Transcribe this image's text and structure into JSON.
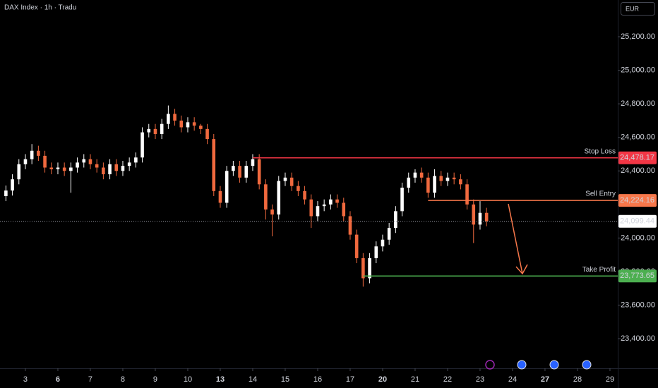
{
  "chart_data": {
    "type": "candlestick",
    "title": "DAX Index · 1h · Tradu",
    "currency": "EUR",
    "up_color": "#ffffff",
    "down_color": "#f0693e",
    "x": [
      -3,
      -2,
      -1,
      0,
      1,
      2,
      3,
      4,
      5,
      6,
      7,
      8,
      9,
      10,
      11,
      12,
      13,
      14,
      15,
      16,
      17,
      18,
      19,
      20,
      21,
      22,
      23,
      24,
      25,
      26,
      27,
      28,
      29,
      30,
      31,
      32,
      33,
      34,
      35,
      36,
      37,
      38,
      39,
      40,
      41,
      42,
      43,
      44,
      45,
      46,
      47,
      48,
      49,
      50,
      51,
      52,
      53,
      54,
      55,
      56,
      57,
      58,
      59,
      60,
      61,
      62,
      63,
      64,
      65,
      66,
      67,
      68,
      69,
      70,
      71
    ],
    "open": [
      24250,
      24283,
      24350,
      24440,
      24470,
      24520,
      24490,
      24420,
      24410,
      24420,
      24400,
      24420,
      24450,
      24470,
      24440,
      24420,
      24380,
      24440,
      24400,
      24430,
      24450,
      24480,
      24630,
      24650,
      24620,
      24680,
      24740,
      24700,
      24660,
      24690,
      24670,
      24650,
      24590,
      24280,
      24210,
      24400,
      24430,
      24360,
      24430,
      24470,
      24320,
      24170,
      24140,
      24340,
      24360,
      24310,
      24280,
      24230,
      24130,
      24190,
      24200,
      24230,
      24210,
      24130,
      24020,
      23880,
      23760,
      23880,
      23950,
      23990,
      24060,
      24160,
      24300,
      24360,
      24390,
      24360,
      24270,
      24370,
      24340,
      24360,
      24350,
      24320,
      24200,
      24080,
      24150
    ],
    "high": [
      24313,
      24380,
      24470,
      24500,
      24560,
      24550,
      24520,
      24450,
      24450,
      24450,
      24450,
      24480,
      24500,
      24500,
      24470,
      24450,
      24470,
      24470,
      24460,
      24480,
      24510,
      24660,
      24680,
      24680,
      24710,
      24790,
      24770,
      24730,
      24720,
      24720,
      24680,
      24680,
      24620,
      24310,
      24430,
      24460,
      24460,
      24460,
      24500,
      24500,
      24350,
      24200,
      24370,
      24390,
      24390,
      24340,
      24310,
      24260,
      24220,
      24230,
      24260,
      24260,
      24240,
      24160,
      24050,
      23910,
      23910,
      23980,
      24020,
      24090,
      24190,
      24330,
      24390,
      24410,
      24420,
      24390,
      24410,
      24400,
      24390,
      24390,
      24380,
      24350,
      24230,
      24220,
      24180
    ],
    "low": [
      24220,
      24253,
      24320,
      24410,
      24440,
      24460,
      24390,
      24380,
      24380,
      24370,
      24270,
      24390,
      24420,
      24410,
      24390,
      24350,
      24350,
      24370,
      24370,
      24400,
      24420,
      24450,
      24600,
      24590,
      24590,
      24650,
      24670,
      24630,
      24630,
      24640,
      24620,
      24560,
      24250,
      24180,
      24180,
      24370,
      24330,
      24330,
      24400,
      24290,
      24110,
      24010,
      24110,
      24310,
      24280,
      24250,
      24200,
      24060,
      24100,
      24160,
      24170,
      24180,
      24100,
      23990,
      23850,
      23710,
      23730,
      23850,
      23920,
      23960,
      24030,
      24130,
      24270,
      24330,
      24330,
      24240,
      24240,
      24310,
      24310,
      24320,
      24290,
      24170,
      23970,
      24050,
      24070
    ],
    "close": [
      24283,
      24350,
      24440,
      24470,
      24520,
      24490,
      24420,
      24410,
      24420,
      24400,
      24420,
      24450,
      24470,
      24440,
      24420,
      24380,
      24440,
      24400,
      24430,
      24450,
      24480,
      24630,
      24650,
      24620,
      24680,
      24740,
      24700,
      24660,
      24690,
      24670,
      24650,
      24590,
      24280,
      24210,
      24400,
      24430,
      24360,
      24430,
      24470,
      24320,
      24170,
      24140,
      24340,
      24360,
      24310,
      24280,
      24230,
      24130,
      24190,
      24200,
      24230,
      24210,
      24130,
      24020,
      23880,
      23760,
      23880,
      23950,
      23990,
      24060,
      24160,
      24300,
      24360,
      24390,
      24360,
      24270,
      24370,
      24340,
      24360,
      24350,
      24320,
      24200,
      24080,
      24150,
      24100
    ],
    "xlim": [
      -3.91,
      91.2
    ],
    "ylim": [
      23316,
      25419
    ],
    "yticks": [
      {
        "value": 25200,
        "label": "25,200.00"
      },
      {
        "value": 25000,
        "label": "25,000.00"
      },
      {
        "value": 24800,
        "label": "24,800.00"
      },
      {
        "value": 24600,
        "label": "24,600.00"
      },
      {
        "value": 24400,
        "label": "24,400.00"
      },
      {
        "value": 24000,
        "label": "24,000.00"
      },
      {
        "value": 23800,
        "label": "23,800.00"
      },
      {
        "value": 23600,
        "label": "23,600.00"
      },
      {
        "value": 23400,
        "label": "23,400.00"
      }
    ],
    "xticks": [
      {
        "value": 0,
        "label": "3"
      },
      {
        "value": 5,
        "label": "6",
        "bold": true
      },
      {
        "value": 10,
        "label": "7"
      },
      {
        "value": 15,
        "label": "8"
      },
      {
        "value": 20,
        "label": "9"
      },
      {
        "value": 25,
        "label": "10"
      },
      {
        "value": 30,
        "label": "13",
        "bold": true
      },
      {
        "value": 35,
        "label": "14"
      },
      {
        "value": 40,
        "label": "15"
      },
      {
        "value": 45,
        "label": "16"
      },
      {
        "value": 50,
        "label": "17"
      },
      {
        "value": 55,
        "label": "20",
        "bold": true
      },
      {
        "value": 60,
        "label": "21"
      },
      {
        "value": 65,
        "label": "22"
      },
      {
        "value": 70,
        "label": "23"
      },
      {
        "value": 75,
        "label": "24"
      },
      {
        "value": 80,
        "label": "27",
        "bold": true
      },
      {
        "value": 85,
        "label": "28"
      },
      {
        "value": 90,
        "label": "29"
      }
    ],
    "levels": [
      {
        "name": "Stop Loss",
        "value": 24478.17,
        "label": "24,478.17",
        "start": 35,
        "color": "#f23645"
      },
      {
        "name": "Sell Entry",
        "value": 24224.16,
        "label": "24,224.16",
        "start": 62,
        "color": "#f7774a"
      },
      {
        "name": "Take Profit",
        "value": 23773.65,
        "label": "23,773.65",
        "start": 52,
        "color": "#4caf50"
      }
    ],
    "last_price": {
      "value": 24099.44,
      "label": "24,099.44"
    }
  }
}
